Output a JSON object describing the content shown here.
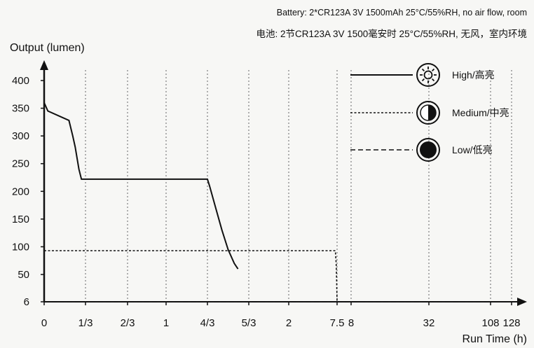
{
  "notes": {
    "en": "Battery: 2*CR123A 3V 1500mAh  25°C/55%RH, no air flow, room",
    "cn": "电池: 2节CR123A 3V 1500毫安时 25°C/55%RH, 无风，室内环境"
  },
  "chart_data": {
    "type": "line",
    "ylabel": "Output (lumen)",
    "xlabel": "Run Time (h)",
    "y_ticks": [
      6,
      50,
      100,
      150,
      200,
      250,
      300,
      350,
      400
    ],
    "x_ticks": [
      "0",
      "1/3",
      "2/3",
      "1",
      "4/3",
      "5/3",
      "2",
      "7.5",
      "8",
      "32",
      "108",
      "128"
    ],
    "x_tick_values_h": [
      0,
      0.333,
      0.667,
      1,
      1.333,
      1.667,
      2,
      7.5,
      8,
      32,
      108,
      128
    ],
    "x_scale": "non-uniform (tick spacing not proportional to hours)",
    "grid": "vertical dashed lines at each x tick",
    "legend_placement": "top-right",
    "series": [
      {
        "name": "High/高亮",
        "line_style": "solid",
        "icon": "sun-icon",
        "points": [
          [
            0,
            360
          ],
          [
            0.03,
            345
          ],
          [
            0.13,
            335
          ],
          [
            0.2,
            328
          ],
          [
            0.23,
            300
          ],
          [
            0.25,
            280
          ],
          [
            0.28,
            240
          ],
          [
            0.3,
            222
          ],
          [
            0.4,
            222
          ],
          [
            1.333,
            222
          ],
          [
            1.35,
            210
          ],
          [
            1.4,
            170
          ],
          [
            1.45,
            130
          ],
          [
            1.5,
            95
          ],
          [
            1.55,
            70
          ],
          [
            1.58,
            60
          ]
        ]
      },
      {
        "name": "Medium/中亮",
        "line_style": "dotted",
        "icon": "half-circle-icon",
        "points": [
          [
            0,
            93
          ],
          [
            7.3,
            93
          ],
          [
            7.4,
            70
          ],
          [
            7.45,
            40
          ],
          [
            7.5,
            6
          ]
        ]
      },
      {
        "name": "Low/低亮",
        "line_style": "dashed",
        "icon": "filled-circle-icon",
        "points": [
          [
            0,
            6
          ],
          [
            108,
            6
          ]
        ]
      }
    ]
  }
}
